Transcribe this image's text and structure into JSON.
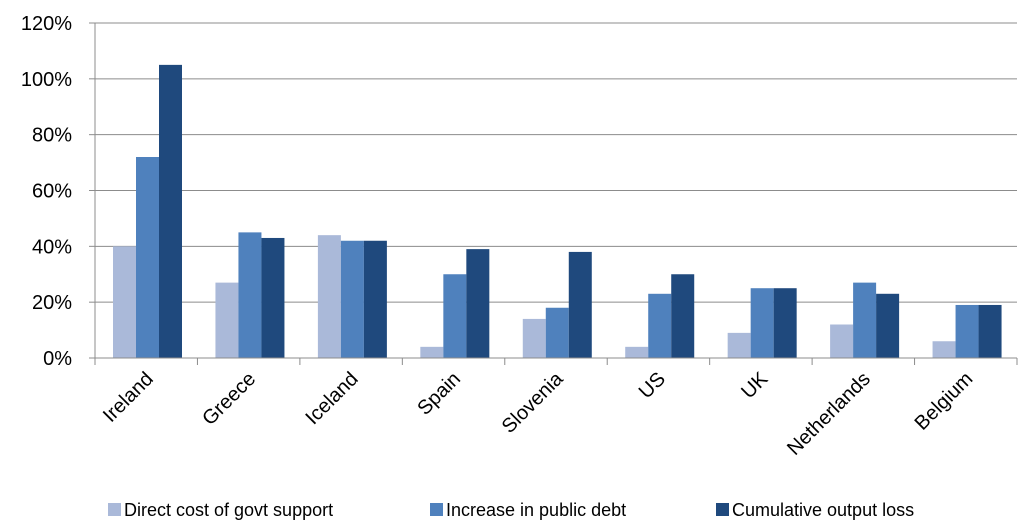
{
  "chart_data": {
    "type": "bar",
    "title": "",
    "xlabel": "",
    "ylabel": "",
    "ylim": [
      0,
      120
    ],
    "y_ticks": [
      "0%",
      "20%",
      "40%",
      "60%",
      "80%",
      "100%",
      "120%"
    ],
    "y_tick_values": [
      0,
      20,
      40,
      60,
      80,
      100,
      120
    ],
    "grid": true,
    "legend_position": "bottom",
    "categories": [
      "Ireland",
      "Greece",
      "Iceland",
      "Spain",
      "Slovenia",
      "US",
      "UK",
      "Netherlands",
      "Belgium"
    ],
    "series": [
      {
        "name": "Direct cost of govt support",
        "color": "#aab9d9",
        "values": [
          40,
          27,
          44,
          4,
          14,
          4,
          9,
          12,
          6
        ]
      },
      {
        "name": "Increase in public debt",
        "color": "#4f81bd",
        "values": [
          72,
          45,
          42,
          30,
          18,
          23,
          25,
          27,
          19
        ]
      },
      {
        "name": "Cumulative output loss",
        "color": "#1f497d",
        "values": [
          105,
          43,
          42,
          39,
          38,
          30,
          25,
          23,
          19
        ]
      }
    ]
  }
}
